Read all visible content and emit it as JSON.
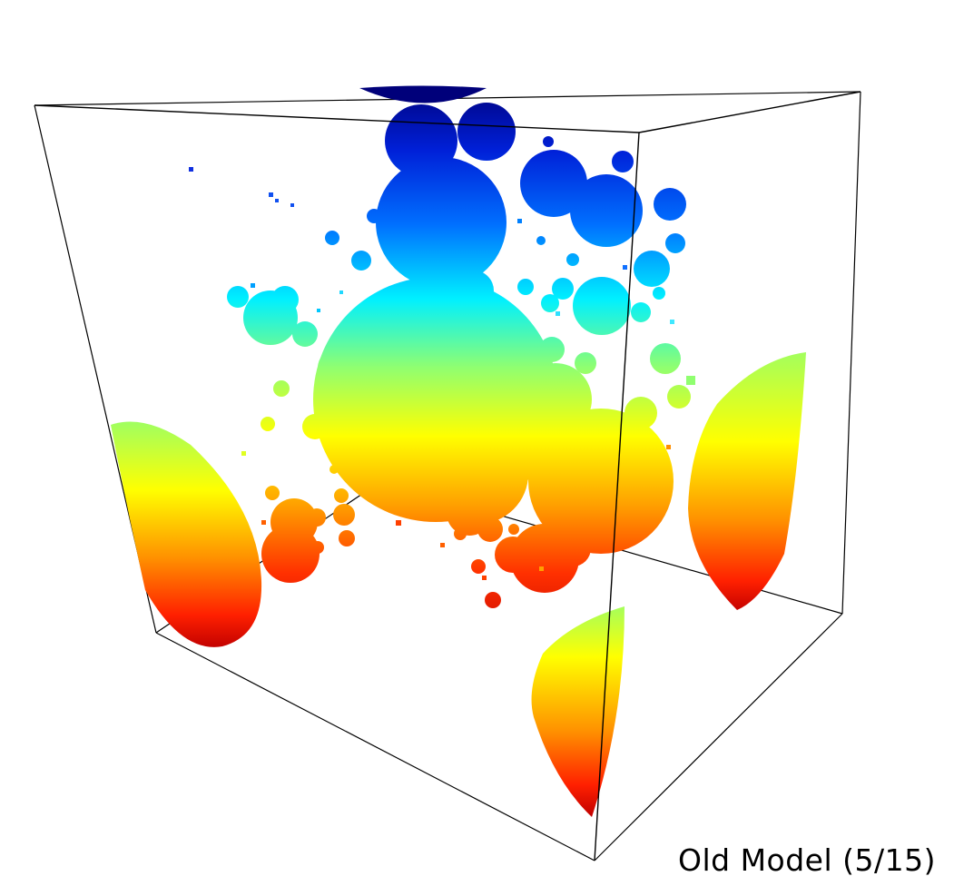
{
  "caption": "Old Model (5/15)",
  "colors": {
    "background": "#ffffff",
    "edges": "#000000",
    "colormap": [
      "#00007a",
      "#0000c8",
      "#0060ff",
      "#00e8ff",
      "#80ff80",
      "#ffff00",
      "#ffa000",
      "#ff3000",
      "#c00000"
    ]
  }
}
